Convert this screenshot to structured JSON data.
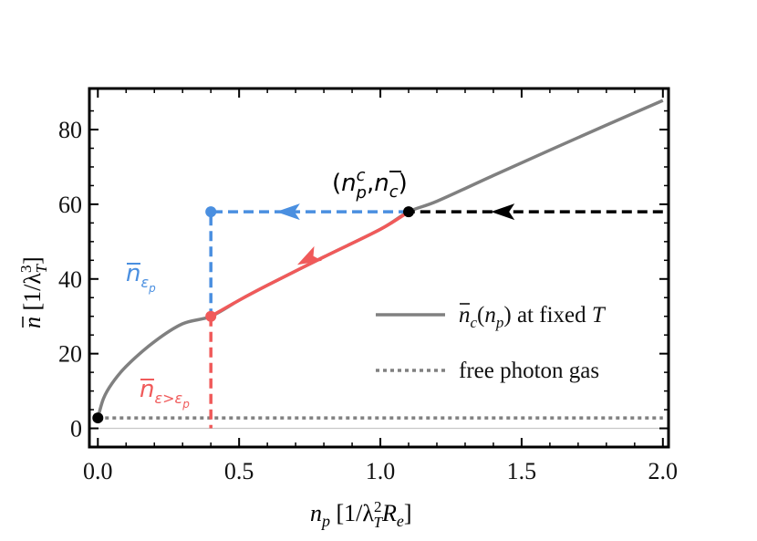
{
  "chart_data": {
    "type": "line",
    "title": "",
    "xlabel": "n_p [1/λ_T^2 R_e]",
    "ylabel": "n̄ [1/λ_T^3]",
    "xlim": [
      -0.03,
      2.02
    ],
    "ylim": [
      -5,
      91
    ],
    "xticks": [
      "0.0",
      "0.5",
      "1.0",
      "1.5",
      "2.0"
    ],
    "yticks": [
      "0",
      "20",
      "40",
      "60",
      "80"
    ],
    "xtick_values": [
      0.0,
      0.5,
      1.0,
      1.5,
      2.0
    ],
    "ytick_values": [
      0,
      20,
      40,
      60,
      80
    ],
    "series": [
      {
        "name": "n̄_c(n_p) at fixed T",
        "color": "#808080",
        "style": "solid",
        "x": [
          0.0,
          0.02,
          0.05,
          0.1,
          0.2,
          0.3,
          0.4,
          0.5,
          0.6,
          0.8,
          1.0,
          1.1,
          1.2,
          1.4,
          1.6,
          1.8,
          2.0
        ],
        "y": [
          2.8,
          8.0,
          12.0,
          16.6,
          23.2,
          28.0,
          30.0,
          34.3,
          38.3,
          45.9,
          53.3,
          58.0,
          60.8,
          67.7,
          74.5,
          81.2,
          87.8
        ]
      },
      {
        "name": "free photon gas",
        "color": "#808080",
        "style": "dotted",
        "x": [
          0.0,
          2.0
        ],
        "y": [
          2.8,
          2.8
        ]
      }
    ],
    "paths": [
      {
        "name": "black-arrow-path",
        "color": "#000000",
        "style": "dashed",
        "x": [
          2.0,
          1.1
        ],
        "y": [
          58.0,
          58.0
        ]
      },
      {
        "name": "blue-arrow-path",
        "color": "#4a8fe0",
        "style": "dashed",
        "x": [
          1.1,
          0.4,
          0.4
        ],
        "y": [
          58.0,
          58.0,
          30.0
        ]
      },
      {
        "name": "red-curve-path",
        "color": "#f05a5a",
        "style": "solid",
        "x": [
          1.1,
          0.4
        ],
        "y": [
          58.0,
          30.0
        ]
      },
      {
        "name": "red-vertical-path",
        "color": "#f05a5a",
        "style": "dashed",
        "x": [
          0.4,
          0.4
        ],
        "y": [
          30.0,
          0.0
        ]
      }
    ],
    "points": [
      {
        "name": "critical-point",
        "x": 1.1,
        "y": 58.0,
        "color": "#000000"
      },
      {
        "name": "origin-point",
        "x": 0.0,
        "y": 2.8,
        "color": "#000000"
      },
      {
        "name": "blue-point",
        "x": 0.4,
        "y": 58.0,
        "color": "#4a8fe0"
      },
      {
        "name": "red-point",
        "x": 0.4,
        "y": 30.0,
        "color": "#f05a5a"
      }
    ],
    "reference_line": {
      "y": 0,
      "color": "#c8c8c8"
    },
    "annotations": {
      "critical": "(n_p^c, n̄_c)",
      "blue_label": "n̄_εp",
      "red_label": "n̄_ε>εp"
    },
    "legend": {
      "placement": "bottom-right",
      "entries": [
        "n̄_c(n_p) at fixed T",
        "free photon gas"
      ]
    }
  }
}
